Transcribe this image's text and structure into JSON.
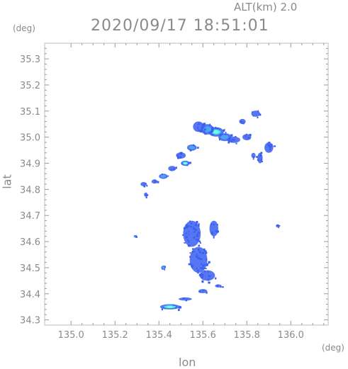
{
  "header": {
    "altitude_label": "ALT(km)",
    "altitude_value": "2.0",
    "timestamp": "2020/09/17 18:51:01"
  },
  "axes": {
    "y_unit": "(deg)",
    "x_unit": "(deg)",
    "y_title": "lat",
    "x_title": "lon",
    "x_ticks": [
      {
        "value": 135.0,
        "label": "135.0"
      },
      {
        "value": 135.2,
        "label": "135.2"
      },
      {
        "value": 135.4,
        "label": "135.4"
      },
      {
        "value": 135.6,
        "label": "135.6"
      },
      {
        "value": 135.8,
        "label": "135.8"
      },
      {
        "value": 136.0,
        "label": "136.0"
      }
    ],
    "y_ticks": [
      {
        "value": 34.3,
        "label": "34.3"
      },
      {
        "value": 34.4,
        "label": "34.4"
      },
      {
        "value": 34.5,
        "label": "34.5"
      },
      {
        "value": 34.6,
        "label": "34.6"
      },
      {
        "value": 34.7,
        "label": "34.7"
      },
      {
        "value": 34.8,
        "label": "34.8"
      },
      {
        "value": 34.9,
        "label": "34.9"
      },
      {
        "value": 35.0,
        "label": "35.0"
      },
      {
        "value": 35.1,
        "label": "35.1"
      },
      {
        "value": 35.2,
        "label": "35.2"
      },
      {
        "value": 35.3,
        "label": "35.3"
      }
    ],
    "x_range": [
      134.88,
      136.17
    ],
    "y_range": [
      34.28,
      35.36
    ]
  },
  "colors": {
    "frame": "#bdbdbd",
    "ticks": "#9a9a9a",
    "echo_weak": "#3a5ef0",
    "echo_mid": "#4aa8f2",
    "echo_strong": "#3ff0e0"
  },
  "echoes": [
    {
      "lon": 135.66,
      "lat": 35.02,
      "rx": 0.035,
      "ry": 0.018,
      "level": "strong"
    },
    {
      "lon": 135.62,
      "lat": 35.03,
      "rx": 0.03,
      "ry": 0.02,
      "level": "mid"
    },
    {
      "lon": 135.7,
      "lat": 35.0,
      "rx": 0.03,
      "ry": 0.015,
      "level": "mid"
    },
    {
      "lon": 135.58,
      "lat": 35.04,
      "rx": 0.025,
      "ry": 0.02,
      "level": "weak"
    },
    {
      "lon": 135.74,
      "lat": 34.99,
      "rx": 0.03,
      "ry": 0.012,
      "level": "weak"
    },
    {
      "lon": 135.8,
      "lat": 35.0,
      "rx": 0.02,
      "ry": 0.012,
      "level": "weak"
    },
    {
      "lon": 135.84,
      "lat": 35.09,
      "rx": 0.02,
      "ry": 0.012,
      "level": "weak"
    },
    {
      "lon": 135.78,
      "lat": 35.06,
      "rx": 0.015,
      "ry": 0.01,
      "level": "weak"
    },
    {
      "lon": 135.55,
      "lat": 34.96,
      "rx": 0.022,
      "ry": 0.012,
      "level": "mid"
    },
    {
      "lon": 135.5,
      "lat": 34.93,
      "rx": 0.022,
      "ry": 0.012,
      "level": "weak"
    },
    {
      "lon": 135.52,
      "lat": 34.9,
      "rx": 0.02,
      "ry": 0.01,
      "level": "strong"
    },
    {
      "lon": 135.46,
      "lat": 34.88,
      "rx": 0.018,
      "ry": 0.01,
      "level": "weak"
    },
    {
      "lon": 135.42,
      "lat": 34.85,
      "rx": 0.02,
      "ry": 0.01,
      "level": "mid"
    },
    {
      "lon": 135.38,
      "lat": 34.83,
      "rx": 0.014,
      "ry": 0.008,
      "level": "weak"
    },
    {
      "lon": 135.33,
      "lat": 34.82,
      "rx": 0.014,
      "ry": 0.008,
      "level": "weak"
    },
    {
      "lon": 135.9,
      "lat": 34.96,
      "rx": 0.02,
      "ry": 0.02,
      "level": "weak"
    },
    {
      "lon": 135.86,
      "lat": 34.92,
      "rx": 0.012,
      "ry": 0.02,
      "level": "weak"
    },
    {
      "lon": 135.55,
      "lat": 34.63,
      "rx": 0.04,
      "ry": 0.05,
      "level": "weak"
    },
    {
      "lon": 135.58,
      "lat": 34.53,
      "rx": 0.04,
      "ry": 0.05,
      "level": "weak"
    },
    {
      "lon": 135.62,
      "lat": 34.47,
      "rx": 0.035,
      "ry": 0.02,
      "level": "weak"
    },
    {
      "lon": 135.65,
      "lat": 34.65,
      "rx": 0.02,
      "ry": 0.03,
      "level": "weak"
    },
    {
      "lon": 135.52,
      "lat": 34.38,
      "rx": 0.03,
      "ry": 0.006,
      "level": "weak"
    },
    {
      "lon": 135.45,
      "lat": 34.35,
      "rx": 0.045,
      "ry": 0.01,
      "level": "strong"
    },
    {
      "lon": 135.42,
      "lat": 34.5,
      "rx": 0.01,
      "ry": 0.008,
      "level": "mid"
    },
    {
      "lon": 135.94,
      "lat": 34.66,
      "rx": 0.008,
      "ry": 0.006,
      "level": "weak"
    },
    {
      "lon": 135.29,
      "lat": 34.62,
      "rx": 0.004,
      "ry": 0.004,
      "level": "mid"
    },
    {
      "lon": 135.6,
      "lat": 34.41,
      "rx": 0.02,
      "ry": 0.008,
      "level": "weak"
    },
    {
      "lon": 135.67,
      "lat": 34.43,
      "rx": 0.015,
      "ry": 0.006,
      "level": "weak"
    },
    {
      "lon": 135.83,
      "lat": 34.93,
      "rx": 0.01,
      "ry": 0.01,
      "level": "weak"
    },
    {
      "lon": 135.34,
      "lat": 34.78,
      "rx": 0.008,
      "ry": 0.008,
      "level": "weak"
    }
  ]
}
